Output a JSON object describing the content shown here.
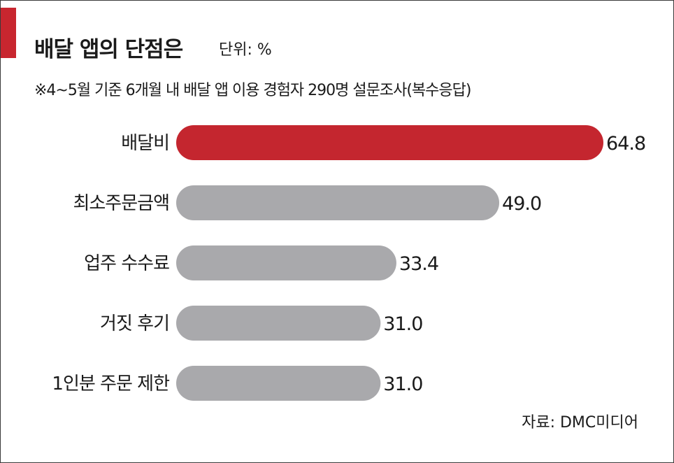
{
  "title": "배달 앱의 단점은",
  "unit": "단위: %",
  "note": "※4~5월 기준 6개월 내 배달 앱 이용 경험자 290명 설문조사(복수응답)",
  "source": "자료: DMC미디어",
  "colors": {
    "accent": "#c8262f",
    "highlight": "#c4262f",
    "bar": "#a9a9ac"
  },
  "chart_data": {
    "type": "bar",
    "orientation": "horizontal",
    "categories": [
      "배달비",
      "최소주문금액",
      "업주 수수료",
      "거짓 후기",
      "1인분 주문 제한"
    ],
    "values": [
      64.8,
      49.0,
      33.4,
      31.0,
      31.0
    ],
    "value_labels": [
      "64.8",
      "49.0",
      "33.4",
      "31.0",
      "31.0"
    ],
    "highlight_index": 0,
    "title": "배달 앱의 단점은",
    "xlabel": "",
    "ylabel": "",
    "xlim": [
      0,
      64.8
    ],
    "grid": false,
    "legend": "none"
  }
}
